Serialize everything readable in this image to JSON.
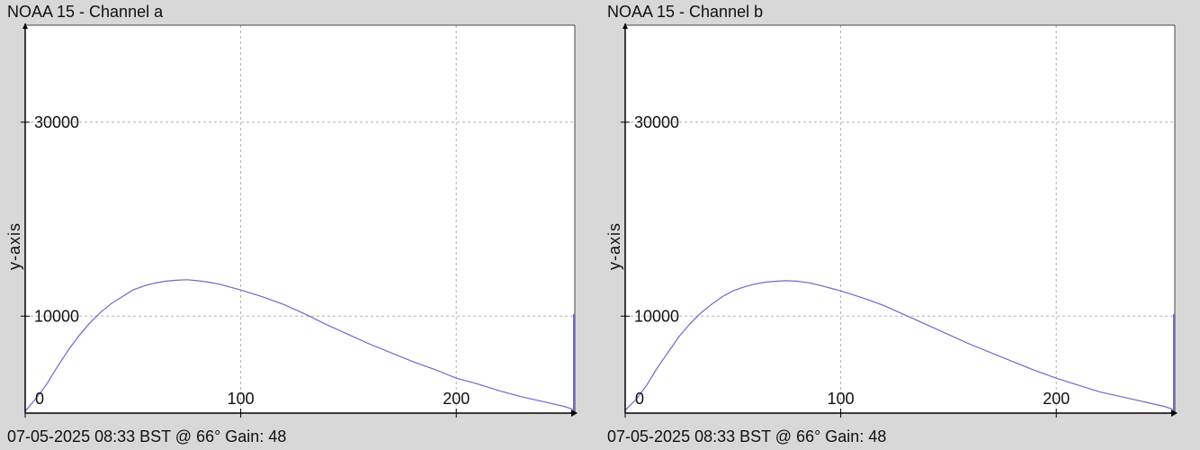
{
  "chart_data": [
    {
      "type": "line",
      "title": "NOAA 15 - Channel a",
      "footer": "07-05-2025 08:33 BST @ 66° Gain: 48",
      "ylabel": "y-axis",
      "xlabel": "",
      "xlim": [
        0,
        255
      ],
      "ylim": [
        0,
        40000
      ],
      "x_ticks": [
        0,
        100,
        200
      ],
      "y_ticks": [
        0,
        10000,
        30000
      ],
      "x_tick_labels": [
        "0",
        "100",
        "200"
      ],
      "y_tick_labels": [
        "0",
        "10000",
        "30000"
      ],
      "grid": true,
      "line_color": "#6a6acc",
      "series": [
        {
          "x": [
            0,
            5,
            10,
            15,
            20,
            25,
            30,
            35,
            40,
            45,
            50,
            55,
            60,
            65,
            70,
            75,
            80,
            85,
            90,
            95,
            100,
            110,
            120,
            130,
            140,
            150,
            160,
            170,
            180,
            190,
            200,
            210,
            220,
            230,
            240,
            250,
            254
          ],
          "values": [
            200,
            1500,
            3000,
            4800,
            6500,
            8000,
            9300,
            10400,
            11300,
            12000,
            12700,
            13100,
            13400,
            13600,
            13700,
            13750,
            13650,
            13500,
            13300,
            13000,
            12700,
            12000,
            11200,
            10200,
            9100,
            8100,
            7100,
            6200,
            5300,
            4500,
            3600,
            3000,
            2300,
            1700,
            1200,
            700,
            400
          ],
          "spike": {
            "x": 255,
            "y": 10200
          }
        }
      ]
    },
    {
      "type": "line",
      "title": "NOAA 15 - Channel b",
      "footer": "07-05-2025 08:33 BST @ 66° Gain: 48",
      "ylabel": "y-axis",
      "xlabel": "",
      "xlim": [
        0,
        255
      ],
      "ylim": [
        0,
        40000
      ],
      "x_ticks": [
        0,
        100,
        200
      ],
      "y_ticks": [
        0,
        10000,
        30000
      ],
      "x_tick_labels": [
        "0",
        "100",
        "200"
      ],
      "y_tick_labels": [
        "0",
        "10000",
        "30000"
      ],
      "grid": true,
      "line_color": "#6a6acc",
      "series": [
        {
          "x": [
            0,
            5,
            10,
            15,
            20,
            25,
            30,
            35,
            40,
            45,
            50,
            55,
            60,
            65,
            70,
            75,
            80,
            85,
            90,
            95,
            100,
            110,
            120,
            130,
            140,
            150,
            160,
            170,
            180,
            190,
            200,
            210,
            220,
            230,
            240,
            250,
            254
          ],
          "values": [
            300,
            1400,
            2900,
            4700,
            6300,
            7900,
            9200,
            10300,
            11200,
            12000,
            12600,
            13000,
            13300,
            13500,
            13600,
            13650,
            13600,
            13450,
            13200,
            12900,
            12600,
            11900,
            11100,
            10100,
            9100,
            8100,
            7100,
            6200,
            5300,
            4400,
            3600,
            2900,
            2200,
            1700,
            1200,
            700,
            400
          ],
          "spike": {
            "x": 255,
            "y": 10200
          }
        }
      ]
    }
  ]
}
